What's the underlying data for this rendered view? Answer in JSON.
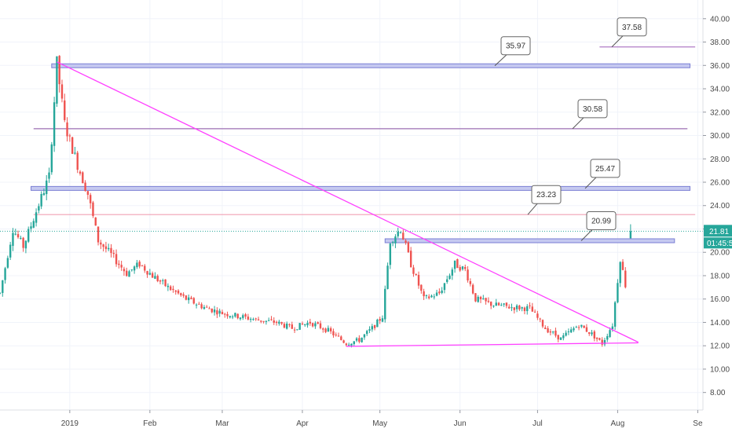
{
  "chart_data": {
    "type": "candlestick",
    "y_axis": {
      "position": "right",
      "ylim": [
        6.5,
        41.6
      ],
      "ticks": [
        "40.00",
        "38.00",
        "36.00",
        "34.00",
        "32.00",
        "30.00",
        "28.00",
        "26.00",
        "24.00",
        "22.00",
        "20.00",
        "18.00",
        "16.00",
        "14.00",
        "12.00",
        "10.00",
        "8.00"
      ],
      "tick_values": [
        40,
        38,
        36,
        34,
        32,
        30,
        28,
        26,
        24,
        22,
        20,
        18,
        16,
        14,
        12,
        10,
        8
      ]
    },
    "x_axis": {
      "ticks": [
        "2019",
        "Feb",
        "Mar",
        "Apr",
        "May",
        "Jun",
        "Jul",
        "Aug",
        "Se"
      ],
      "tick_dates": [
        "2019-01-01",
        "2019-02-01",
        "2019-03-01",
        "2019-04-01",
        "2019-05-01",
        "2019-06-01",
        "2019-07-01",
        "2019-08-01",
        "2019-09-01"
      ],
      "range": [
        "2018-12-05",
        "2019-09-03"
      ]
    },
    "last_price": {
      "value": 21.81,
      "label": "21.81",
      "countdown": "01:45:5",
      "color": "#26a69a"
    },
    "price_path": [
      [
        "2018-12-05",
        16.5
      ],
      [
        "2018-12-10",
        22.0
      ],
      [
        "2018-12-14",
        20.5
      ],
      [
        "2018-12-19",
        23.5
      ],
      [
        "2018-12-24",
        26.5
      ],
      [
        "2018-12-27",
        36.2
      ],
      [
        "2018-12-30",
        31.0
      ],
      [
        "2019-01-04",
        27.5
      ],
      [
        "2019-01-08",
        25.0
      ],
      [
        "2019-01-12",
        21.0
      ],
      [
        "2019-01-17",
        19.8
      ],
      [
        "2019-01-23",
        18.2
      ],
      [
        "2019-01-28",
        19.0
      ],
      [
        "2019-02-02",
        18.0
      ],
      [
        "2019-02-08",
        17.0
      ],
      [
        "2019-02-15",
        16.0
      ],
      [
        "2019-02-22",
        15.3
      ],
      [
        "2019-03-01",
        14.8
      ],
      [
        "2019-03-08",
        14.5
      ],
      [
        "2019-03-15",
        14.2
      ],
      [
        "2019-03-22",
        14.0
      ],
      [
        "2019-03-28",
        13.5
      ],
      [
        "2019-04-04",
        14.0
      ],
      [
        "2019-04-11",
        13.3
      ],
      [
        "2019-04-18",
        12.2
      ],
      [
        "2019-04-23",
        12.5
      ],
      [
        "2019-04-28",
        13.5
      ],
      [
        "2019-05-02",
        14.5
      ],
      [
        "2019-05-05",
        21.0
      ],
      [
        "2019-05-09",
        22.0
      ],
      [
        "2019-05-13",
        19.0
      ],
      [
        "2019-05-18",
        16.0
      ],
      [
        "2019-05-24",
        16.5
      ],
      [
        "2019-05-30",
        19.0
      ],
      [
        "2019-06-03",
        18.5
      ],
      [
        "2019-06-07",
        16.0
      ],
      [
        "2019-06-14",
        15.5
      ],
      [
        "2019-06-21",
        15.3
      ],
      [
        "2019-06-28",
        15.2
      ],
      [
        "2019-07-04",
        13.5
      ],
      [
        "2019-07-10",
        12.6
      ],
      [
        "2019-07-17",
        13.8
      ],
      [
        "2019-07-22",
        13.0
      ],
      [
        "2019-07-26",
        12.2
      ],
      [
        "2019-07-30",
        13.8
      ],
      [
        "2019-08-02",
        19.5
      ],
      [
        "2019-08-04",
        17.2
      ]
    ],
    "last_candle": {
      "date": "2019-08-06",
      "open": 21.2,
      "high": 22.4,
      "low": 21.2,
      "close": 21.81
    },
    "trendlines": [
      {
        "name": "descending-resistance",
        "from": [
          "2018-12-27",
          36.3
        ],
        "to": [
          "2019-08-09",
          12.3
        ],
        "color": "#ff40ff"
      },
      {
        "name": "ascending-support",
        "from": [
          "2019-04-18",
          11.95
        ],
        "to": [
          "2019-08-09",
          12.25
        ],
        "color": "#ff40ff"
      }
    ],
    "horizontal_levels": [
      {
        "value": 37.58,
        "label": "37.58",
        "style": "line",
        "color": "#b07cc6",
        "from": "2019-07-25",
        "to": "2019-08-31"
      },
      {
        "value": 35.97,
        "label": "35.97",
        "style": "band",
        "color": "#7b7fd4",
        "from": "2018-12-25",
        "to": "2019-08-29"
      },
      {
        "value": 30.58,
        "label": "30.58",
        "style": "line",
        "color": "#9c6fb3",
        "from": "2018-12-18",
        "to": "2019-08-28"
      },
      {
        "value": 25.47,
        "label": "25.47",
        "style": "band",
        "color": "#7b7fd4",
        "from": "2018-12-17",
        "to": "2019-08-29"
      },
      {
        "value": 23.23,
        "label": "23.23",
        "style": "line",
        "color": "#f0a0b4",
        "from": "2018-12-18",
        "to": "2019-08-31"
      },
      {
        "value": 20.99,
        "label": "20.99",
        "style": "band",
        "color": "#7b7fd4",
        "from": "2019-05-03",
        "to": "2019-08-23"
      }
    ],
    "colors": {
      "up": "#26a69a",
      "down": "#ef5350",
      "grid": "#f0f3fa",
      "axis": "#9598a1"
    }
  }
}
